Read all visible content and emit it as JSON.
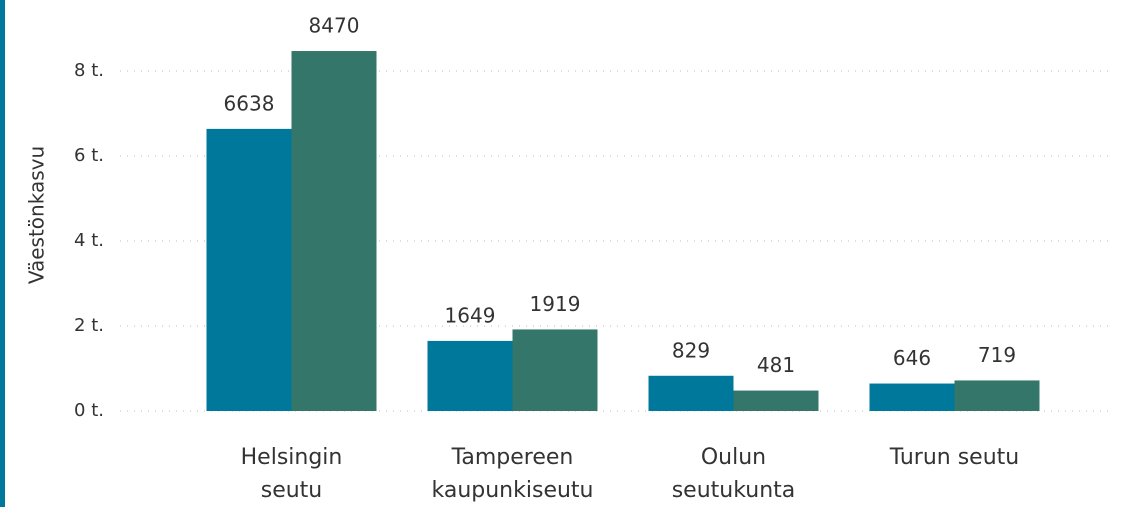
{
  "chart_data": {
    "type": "bar",
    "y_label": "Väestönkasvu",
    "categories": [
      "Helsingin\nseutu",
      "Tampereen\nkaupunkiseutu",
      "Oulun\nseutukunta",
      "Turun seutu"
    ],
    "series": [
      {
        "color": "#00789b",
        "values": [
          6638,
          1649,
          829,
          646
        ]
      },
      {
        "color": "#35766a",
        "values": [
          8470,
          1919,
          481,
          719
        ]
      }
    ],
    "ylim": [
      0,
      8800
    ],
    "yticks": [
      {
        "value": 0,
        "label": "0 t."
      },
      {
        "value": 2000,
        "label": "2 t."
      },
      {
        "value": 4000,
        "label": "4 t."
      },
      {
        "value": 6000,
        "label": "6 t."
      },
      {
        "value": 8000,
        "label": "8 t."
      }
    ],
    "grid": true
  }
}
